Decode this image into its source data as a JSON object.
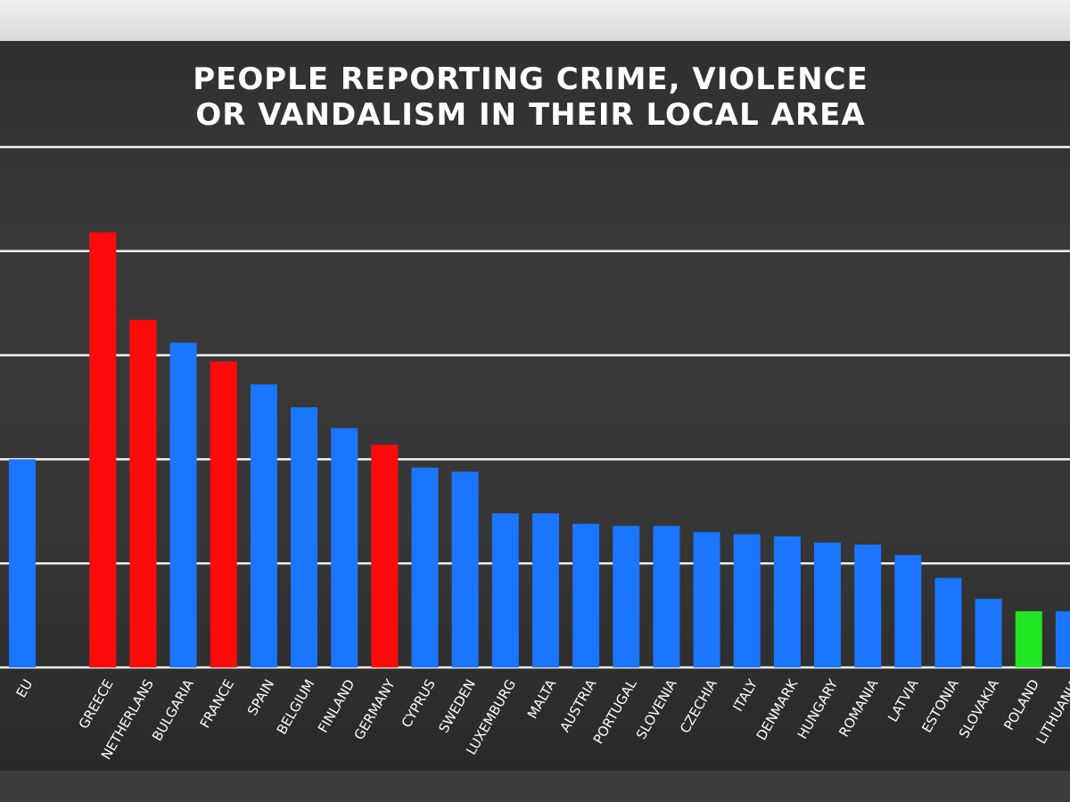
{
  "chart_data": {
    "type": "bar",
    "title": [
      "PEOPLE REPORTING CRIME, VIOLENCE",
      "OR VANDALISM IN THEIR LOCAL AREA"
    ],
    "categories": [
      "EU",
      "GREECE",
      "NETHERLANS",
      "BULGARIA",
      "FRANCE",
      "SPAIN",
      "BELGIUM",
      "FINLAND",
      "GERMANY",
      "CYPRUS",
      "SWEDEN",
      "LUXEMBURG",
      "MALTA",
      "AUSTRIA",
      "PORTUGAL",
      "SLOVENIA",
      "CZECHIA",
      "ITALY",
      "DENMARK",
      "HUNGARY",
      "ROMANIA",
      "LATVIA",
      "ESTONIA",
      "SLOVAKIA",
      "POLAND",
      "LITHUANIA"
    ],
    "values": [
      10.0,
      20.9,
      16.7,
      15.6,
      14.7,
      13.6,
      12.5,
      11.5,
      10.7,
      9.6,
      9.4,
      7.4,
      7.4,
      6.9,
      6.8,
      6.8,
      6.5,
      6.4,
      6.3,
      6.0,
      5.9,
      5.4,
      4.3,
      3.3,
      2.7,
      2.7
    ],
    "colors": [
      "#1a75ff",
      "#ff0a0a",
      "#ff0a0a",
      "#1a75ff",
      "#ff0a0a",
      "#1a75ff",
      "#1a75ff",
      "#1a75ff",
      "#ff0a0a",
      "#1a75ff",
      "#1a75ff",
      "#1a75ff",
      "#1a75ff",
      "#1a75ff",
      "#1a75ff",
      "#1a75ff",
      "#1a75ff",
      "#1a75ff",
      "#1a75ff",
      "#1a75ff",
      "#1a75ff",
      "#1a75ff",
      "#1a75ff",
      "#1a75ff",
      "#22e622",
      "#1a75ff"
    ],
    "ylim": [
      0,
      25
    ],
    "yticks": [
      0,
      5,
      10,
      15,
      20,
      25
    ],
    "grid": true
  }
}
